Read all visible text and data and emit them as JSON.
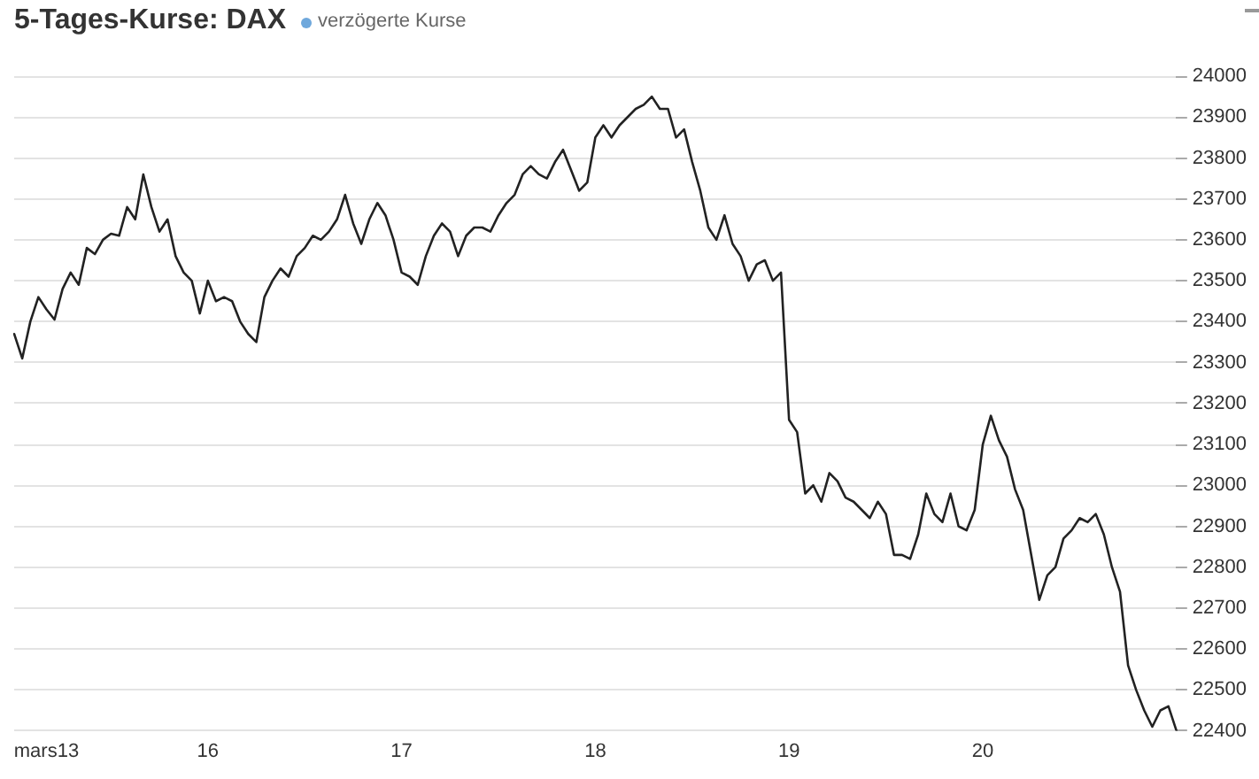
{
  "chart_data": {
    "type": "line",
    "title": "5-Tages-Kurse: DAX",
    "subtitle": "verzögerte Kurse",
    "categories": [
      null,
      null,
      null,
      null,
      "mars13",
      null,
      null,
      null,
      null,
      null,
      null,
      null,
      null,
      null,
      null,
      null,
      null,
      null,
      null,
      null,
      null,
      null,
      null,
      null,
      "16",
      null,
      null,
      null,
      null,
      null,
      null,
      null,
      null,
      null,
      null,
      null,
      null,
      null,
      null,
      null,
      null,
      null,
      null,
      null,
      null,
      null,
      null,
      null,
      "17",
      null,
      null,
      null,
      null,
      null,
      null,
      null,
      null,
      null,
      null,
      null,
      null,
      null,
      null,
      null,
      null,
      null,
      null,
      null,
      null,
      null,
      null,
      null,
      "18",
      null,
      null,
      null,
      null,
      null,
      null,
      null,
      null,
      null,
      null,
      null,
      null,
      null,
      null,
      null,
      null,
      null,
      null,
      null,
      null,
      null,
      null,
      null,
      "19",
      null,
      null,
      null,
      null,
      null,
      null,
      null,
      null,
      null,
      null,
      null,
      null,
      null,
      null,
      null,
      null,
      null,
      null,
      null,
      null,
      null,
      null,
      null,
      "20",
      null,
      null,
      null,
      null,
      null,
      null,
      null,
      null,
      null,
      null,
      null,
      null,
      null,
      null,
      null,
      null,
      null,
      null,
      null,
      null,
      null,
      null,
      null,
      null
    ],
    "series": [
      {
        "color": "#222222",
        "values": [
          23370,
          23310,
          23400,
          23460,
          23430,
          23405,
          23480,
          23520,
          23490,
          23580,
          23565,
          23600,
          23615,
          23610,
          23680,
          23650,
          23760,
          23680,
          23620,
          23650,
          23560,
          23520,
          23500,
          23420,
          23500,
          23450,
          23460,
          23450,
          23400,
          23370,
          23350,
          23460,
          23500,
          23530,
          23510,
          23560,
          23580,
          23610,
          23600,
          23620,
          23650,
          23710,
          23640,
          23590,
          23650,
          23690,
          23660,
          23600,
          23520,
          23510,
          23490,
          23560,
          23610,
          23640,
          23620,
          23560,
          23610,
          23630,
          23630,
          23620,
          23660,
          23690,
          23710,
          23760,
          23780,
          23760,
          23750,
          23790,
          23820,
          23770,
          23720,
          23740,
          23850,
          23880,
          23850,
          23880,
          23900,
          23920,
          23930,
          23950,
          23920,
          23920,
          23850,
          23870,
          23790,
          23720,
          23630,
          23600,
          23660,
          23590,
          23560,
          23500,
          23540,
          23550,
          23500,
          23520,
          23160,
          23130,
          22980,
          23000,
          22960,
          23030,
          23010,
          22970,
          22960,
          22940,
          22920,
          22960,
          22930,
          22830,
          22830,
          22820,
          22880,
          22980,
          22930,
          22910,
          22980,
          22900,
          22890,
          22940,
          23100,
          23170,
          23110,
          23070,
          22990,
          22940,
          22830,
          22720,
          22780,
          22800,
          22870,
          22890,
          22920,
          22910,
          22930,
          22880,
          22800,
          22740,
          22560,
          22500,
          22450,
          22410,
          22450,
          22460,
          22400
        ]
      }
    ],
    "ylim": [
      22400,
      24000
    ],
    "yticks": [
      22400,
      22500,
      22600,
      22700,
      22800,
      22900,
      23000,
      23100,
      23200,
      23300,
      23400,
      23500,
      23600,
      23700,
      23800,
      23900,
      24000
    ],
    "grid": "y"
  }
}
